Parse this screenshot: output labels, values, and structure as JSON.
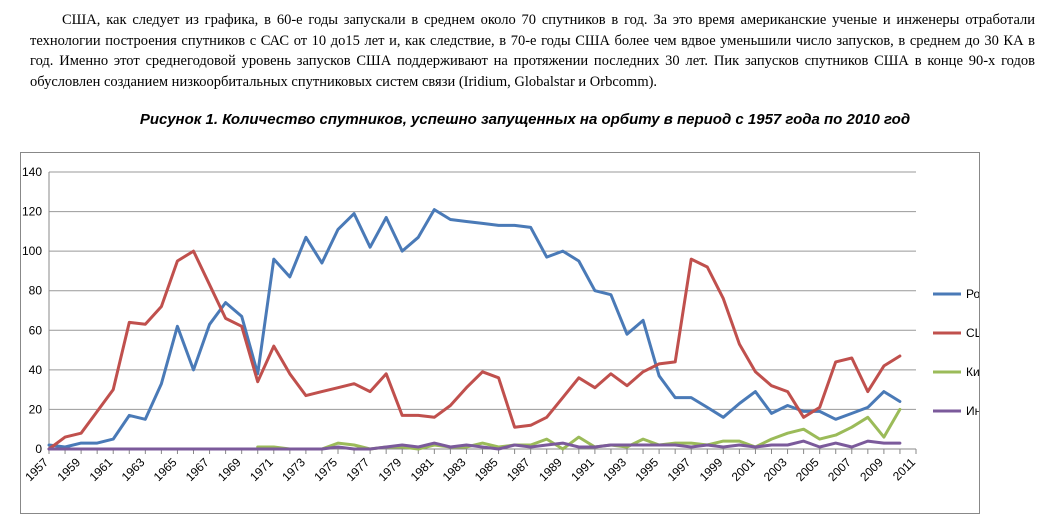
{
  "paragraph": "США, как следует из графика, в 60-е годы запускали в среднем около 70 спутников в год. За это время американские ученые и инженеры отработали технологии построения спутников с САС от 10 до15 лет и, как следствие, в 70-е годы США более чем вдвое уменьшили число запусков, в среднем до 30 КА в год. Именно этот среднегодовой уровень запусков США поддерживают на протяжении последних 30 лет. Пик запусков спутников США в конце 90-х годов обусловлен созданием низкоорбитальных спутниковых систем связи (Iridium, Globalstar и Orbcomm).",
  "caption": "Рисунок 1. Количество спутников, успешно запущенных на орбиту в период с 1957 года по 2010 год",
  "chart_data": {
    "type": "line",
    "title": "",
    "xlabel": "",
    "ylabel": "",
    "ylim": [
      0,
      140
    ],
    "yticks": [
      0,
      20,
      40,
      60,
      80,
      100,
      120,
      140
    ],
    "xlim": [
      1957,
      2011
    ],
    "xticks": [
      1957,
      1959,
      1961,
      1963,
      1965,
      1967,
      1969,
      1971,
      1973,
      1975,
      1977,
      1979,
      1981,
      1983,
      1985,
      1987,
      1989,
      1991,
      1993,
      1995,
      1997,
      1999,
      2001,
      2003,
      2005,
      2007,
      2009,
      2011
    ],
    "grid": "horizontal",
    "legend_position": "right",
    "series": [
      {
        "name": "Ро",
        "color": "#4a7ab7",
        "x": [
          1957,
          1958,
          1959,
          1960,
          1961,
          1962,
          1963,
          1964,
          1965,
          1966,
          1967,
          1968,
          1969,
          1970,
          1971,
          1972,
          1973,
          1974,
          1975,
          1976,
          1977,
          1978,
          1979,
          1980,
          1981,
          1982,
          1983,
          1984,
          1985,
          1986,
          1987,
          1988,
          1989,
          1990,
          1991,
          1992,
          1993,
          1994,
          1995,
          1996,
          1997,
          1998,
          1999,
          2000,
          2001,
          2002,
          2003,
          2004,
          2005,
          2006,
          2007,
          2008,
          2009,
          2010
        ],
        "values": [
          2,
          1,
          3,
          3,
          5,
          17,
          15,
          33,
          62,
          40,
          63,
          74,
          67,
          38,
          96,
          87,
          107,
          94,
          111,
          119,
          102,
          117,
          100,
          107,
          121,
          116,
          115,
          114,
          113,
          113,
          112,
          97,
          100,
          95,
          80,
          78,
          58,
          65,
          37,
          26,
          26,
          21,
          16,
          23,
          29,
          18,
          22,
          19,
          19,
          15,
          18,
          21,
          29,
          24
        ]
      },
      {
        "name": "СШ",
        "color": "#c0504d",
        "x": [
          1957,
          1958,
          1959,
          1960,
          1961,
          1962,
          1963,
          1964,
          1965,
          1966,
          1967,
          1968,
          1969,
          1970,
          1971,
          1972,
          1973,
          1974,
          1975,
          1976,
          1977,
          1978,
          1979,
          1980,
          1981,
          1982,
          1983,
          1984,
          1985,
          1986,
          1987,
          1988,
          1989,
          1990,
          1991,
          1992,
          1993,
          1994,
          1995,
          1996,
          1997,
          1998,
          1999,
          2000,
          2001,
          2002,
          2003,
          2004,
          2005,
          2006,
          2007,
          2008,
          2009,
          2010
        ],
        "values": [
          0,
          6,
          8,
          19,
          30,
          64,
          63,
          72,
          95,
          100,
          83,
          66,
          62,
          34,
          52,
          38,
          27,
          29,
          31,
          33,
          29,
          38,
          17,
          17,
          16,
          22,
          31,
          39,
          36,
          11,
          12,
          16,
          26,
          36,
          31,
          38,
          32,
          39,
          43,
          44,
          96,
          92,
          76,
          53,
          39,
          32,
          29,
          16,
          21,
          44,
          46,
          29,
          42,
          47
        ]
      },
      {
        "name": "Ки",
        "color": "#9bbb59",
        "x": [
          1970,
          1971,
          1972,
          1973,
          1974,
          1975,
          1976,
          1977,
          1978,
          1979,
          1980,
          1981,
          1982,
          1983,
          1984,
          1985,
          1986,
          1987,
          1988,
          1989,
          1990,
          1991,
          1992,
          1993,
          1994,
          1995,
          1996,
          1997,
          1998,
          1999,
          2000,
          2001,
          2002,
          2003,
          2004,
          2005,
          2006,
          2007,
          2008,
          2009,
          2010
        ],
        "values": [
          1,
          1,
          0,
          0,
          0,
          3,
          2,
          0,
          1,
          1,
          0,
          2,
          1,
          1,
          3,
          1,
          2,
          2,
          5,
          0,
          6,
          1,
          2,
          1,
          5,
          2,
          3,
          3,
          2,
          4,
          4,
          1,
          5,
          8,
          10,
          5,
          7,
          11,
          16,
          6,
          20
        ]
      },
      {
        "name": "Ин",
        "color": "#7b5a9b",
        "x": [
          1957,
          1958,
          1959,
          1960,
          1961,
          1962,
          1963,
          1964,
          1965,
          1966,
          1967,
          1968,
          1969,
          1970,
          1971,
          1972,
          1973,
          1974,
          1975,
          1976,
          1977,
          1978,
          1979,
          1980,
          1981,
          1982,
          1983,
          1984,
          1985,
          1986,
          1987,
          1988,
          1989,
          1990,
          1991,
          1992,
          1993,
          1994,
          1995,
          1996,
          1997,
          1998,
          1999,
          2000,
          2001,
          2002,
          2003,
          2004,
          2005,
          2006,
          2007,
          2008,
          2009,
          2010
        ],
        "values": [
          0,
          0,
          0,
          0,
          0,
          0,
          0,
          0,
          0,
          0,
          0,
          0,
          0,
          0,
          0,
          0,
          0,
          0,
          1,
          0,
          0,
          1,
          2,
          1,
          3,
          1,
          2,
          1,
          0,
          2,
          1,
          2,
          3,
          1,
          1,
          2,
          2,
          2,
          2,
          2,
          1,
          2,
          1,
          2,
          1,
          2,
          2,
          4,
          1,
          3,
          1,
          4,
          3,
          3
        ]
      }
    ]
  }
}
